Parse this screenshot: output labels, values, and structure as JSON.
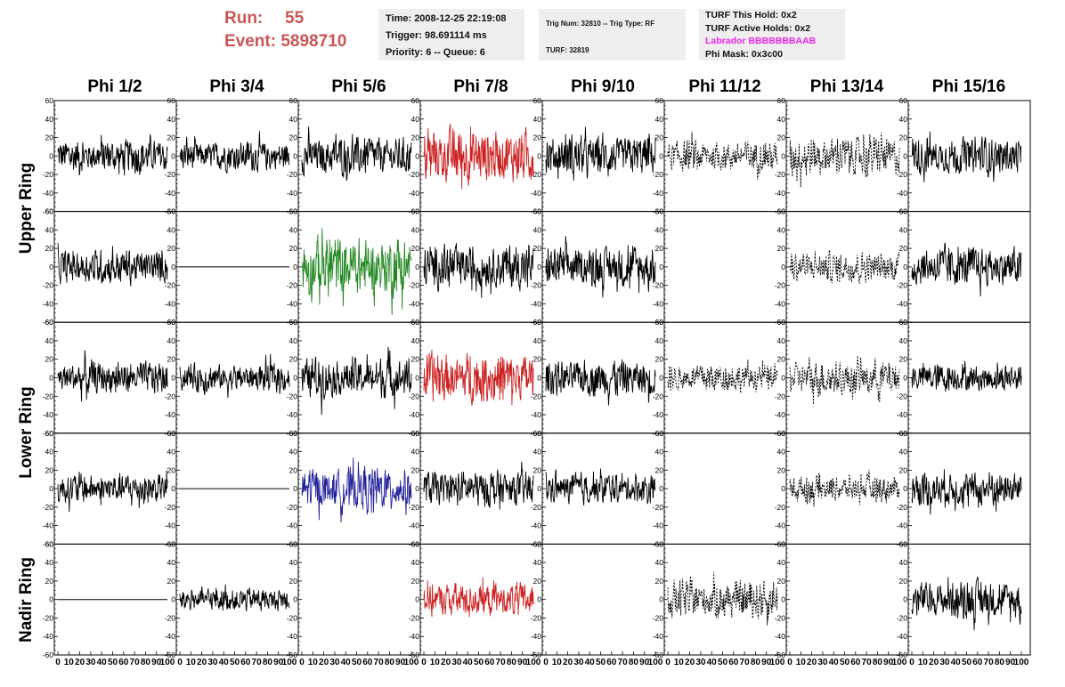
{
  "header": {
    "run_label": "Run:",
    "run_value": "55",
    "event_label": "Event:",
    "event_value": "5898710"
  },
  "info_time": {
    "time": "Time: 2008-12-25 22:19:08",
    "trigger": "Trigger: 98.691114 ms",
    "priority": "Priority: 6 -- Queue: 6"
  },
  "info_trig": {
    "trig": "Trig Num: 32810 -- Trig Type: RF",
    "turf": "TURF: 32819"
  },
  "info_turf": {
    "this_hold": "TURF This Hold: 0x2",
    "active_holds": "TURF Active Holds: 0x2",
    "labrador": "Labrador BBBBBBBAAB",
    "phi_mask": "Phi Mask: 0x3c00",
    "labrador_color": "#ee22ee"
  },
  "phi_headers": [
    "Phi 1/2",
    "Phi 3/4",
    "Phi 5/6",
    "Phi 7/8",
    "Phi 9/10",
    "Phi 11/12",
    "Phi 13/14",
    "Phi 15/16"
  ],
  "ring_labels": [
    "Upper Ring",
    "Lower Ring",
    "Nadir Ring"
  ],
  "chart_data": {
    "type": "line",
    "layout": "5 rows x 8 columns of waveform panels",
    "rows": [
      "Upper Ring A",
      "Upper Ring B",
      "Lower Ring A",
      "Lower Ring B",
      "Nadir Ring"
    ],
    "columns": [
      "Phi 1/2",
      "Phi 3/4",
      "Phi 5/6",
      "Phi 7/8",
      "Phi 9/10",
      "Phi 11/12",
      "Phi 13/14",
      "Phi 15/16"
    ],
    "xlim": [
      0,
      100
    ],
    "ylim": [
      -60,
      60
    ],
    "x_ticks": [
      0,
      10,
      20,
      30,
      40,
      50,
      60,
      70,
      80,
      90,
      100
    ],
    "x_tick_labels": "0 10 20 30 40 50 60 70 80 90 100",
    "y_ticks": [
      -60,
      -40,
      -20,
      0,
      20,
      40,
      60
    ],
    "grid": false,
    "colors": {
      "normal": "#000000",
      "red": "#cc2222",
      "green": "#228822",
      "blue": "#222299"
    },
    "panels": [
      {
        "row": 0,
        "col": 0,
        "style": "solid",
        "color": "normal",
        "amp": 15
      },
      {
        "row": 0,
        "col": 1,
        "style": "solid",
        "color": "normal",
        "amp": 13
      },
      {
        "row": 0,
        "col": 2,
        "style": "solid",
        "color": "normal",
        "amp": 17
      },
      {
        "row": 0,
        "col": 3,
        "style": "solid",
        "color": "red",
        "amp": 24
      },
      {
        "row": 0,
        "col": 4,
        "style": "solid",
        "color": "normal",
        "amp": 17
      },
      {
        "row": 0,
        "col": 5,
        "style": "dashed",
        "color": "normal",
        "amp": 13
      },
      {
        "row": 0,
        "col": 6,
        "style": "dashed",
        "color": "normal",
        "amp": 17
      },
      {
        "row": 0,
        "col": 7,
        "style": "solid",
        "color": "normal",
        "amp": 16
      },
      {
        "row": 1,
        "col": 0,
        "style": "solid",
        "color": "normal",
        "amp": 15
      },
      {
        "row": 1,
        "col": 1,
        "style": "flat",
        "color": "normal",
        "amp": 0
      },
      {
        "row": 1,
        "col": 2,
        "style": "solid",
        "color": "green",
        "amp": 26
      },
      {
        "row": 1,
        "col": 3,
        "style": "solid",
        "color": "normal",
        "amp": 19
      },
      {
        "row": 1,
        "col": 4,
        "style": "solid",
        "color": "normal",
        "amp": 17
      },
      {
        "row": 1,
        "col": 5,
        "style": "blank",
        "color": "normal",
        "amp": 0
      },
      {
        "row": 1,
        "col": 6,
        "style": "dashed",
        "color": "normal",
        "amp": 13
      },
      {
        "row": 1,
        "col": 7,
        "style": "solid",
        "color": "normal",
        "amp": 17
      },
      {
        "row": 2,
        "col": 0,
        "style": "solid",
        "color": "normal",
        "amp": 14
      },
      {
        "row": 2,
        "col": 1,
        "style": "solid",
        "color": "normal",
        "amp": 12
      },
      {
        "row": 2,
        "col": 2,
        "style": "solid",
        "color": "normal",
        "amp": 17
      },
      {
        "row": 2,
        "col": 3,
        "style": "solid",
        "color": "red",
        "amp": 22
      },
      {
        "row": 2,
        "col": 4,
        "style": "solid",
        "color": "normal",
        "amp": 16
      },
      {
        "row": 2,
        "col": 5,
        "style": "dashed",
        "color": "normal",
        "amp": 12
      },
      {
        "row": 2,
        "col": 6,
        "style": "dashed",
        "color": "normal",
        "amp": 15
      },
      {
        "row": 2,
        "col": 7,
        "style": "solid",
        "color": "normal",
        "amp": 12
      },
      {
        "row": 3,
        "col": 0,
        "style": "solid",
        "color": "normal",
        "amp": 13
      },
      {
        "row": 3,
        "col": 1,
        "style": "flat",
        "color": "normal",
        "amp": 0
      },
      {
        "row": 3,
        "col": 2,
        "style": "solid",
        "color": "blue",
        "amp": 18
      },
      {
        "row": 3,
        "col": 3,
        "style": "solid",
        "color": "normal",
        "amp": 16
      },
      {
        "row": 3,
        "col": 4,
        "style": "solid",
        "color": "normal",
        "amp": 13
      },
      {
        "row": 3,
        "col": 5,
        "style": "blank",
        "color": "normal",
        "amp": 0
      },
      {
        "row": 3,
        "col": 6,
        "style": "dashed",
        "color": "normal",
        "amp": 11
      },
      {
        "row": 3,
        "col": 7,
        "style": "solid",
        "color": "normal",
        "amp": 15
      },
      {
        "row": 4,
        "col": 0,
        "style": "flat",
        "color": "normal",
        "amp": 0
      },
      {
        "row": 4,
        "col": 1,
        "style": "solid",
        "color": "normal",
        "amp": 10
      },
      {
        "row": 4,
        "col": 2,
        "style": "blank",
        "color": "normal",
        "amp": 0
      },
      {
        "row": 4,
        "col": 3,
        "style": "solid",
        "color": "red",
        "amp": 14
      },
      {
        "row": 4,
        "col": 4,
        "style": "blank",
        "color": "normal",
        "amp": 0
      },
      {
        "row": 4,
        "col": 5,
        "style": "dashed",
        "color": "normal",
        "amp": 17
      },
      {
        "row": 4,
        "col": 6,
        "style": "blank",
        "color": "normal",
        "amp": 0
      },
      {
        "row": 4,
        "col": 7,
        "style": "solid",
        "color": "normal",
        "amp": 16
      }
    ]
  }
}
